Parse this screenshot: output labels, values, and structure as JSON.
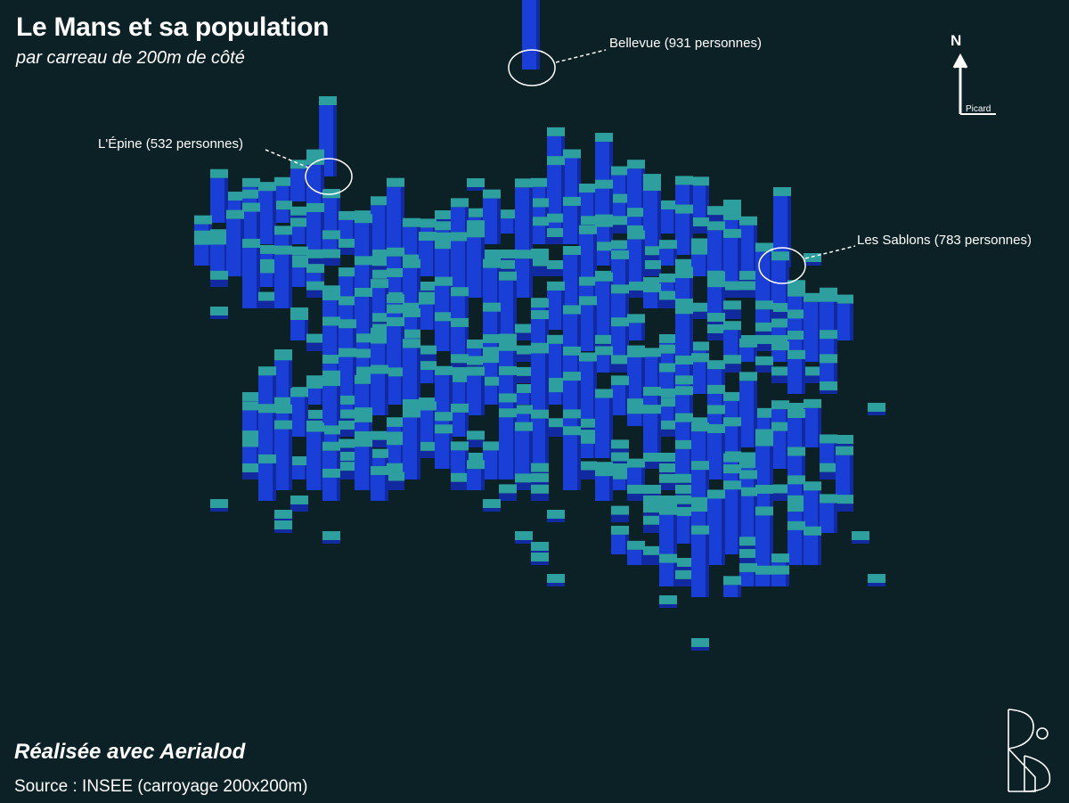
{
  "header": {
    "title": "Le Mans et sa population",
    "subtitle": "par carreau de 200m de côté"
  },
  "annotations": [
    {
      "name": "callout-bellevue",
      "label": "Bellevue (931 personnes)",
      "population": 931
    },
    {
      "name": "callout-lepine",
      "label": "L'Épine (532 personnes)",
      "population": 532
    },
    {
      "name": "callout-les-sablons",
      "label": "Les Sablons (783 personnes)",
      "population": 783
    }
  ],
  "footer": {
    "credit": "Réalisée avec Aerialod",
    "source": "Source : INSEE (carroyage 200x200m)"
  },
  "compass": {
    "north_label": "N",
    "author": "Picard",
    "icon": "north-arrow-icon"
  },
  "logo": {
    "icon": "bd-monogram-logo"
  },
  "colors": {
    "background": "#0b2126",
    "tile_top": "#2e9f9f",
    "tile_side": "#1a3fd6",
    "tile_side_dark": "#122aa0",
    "annotation": "#ffffff"
  }
}
